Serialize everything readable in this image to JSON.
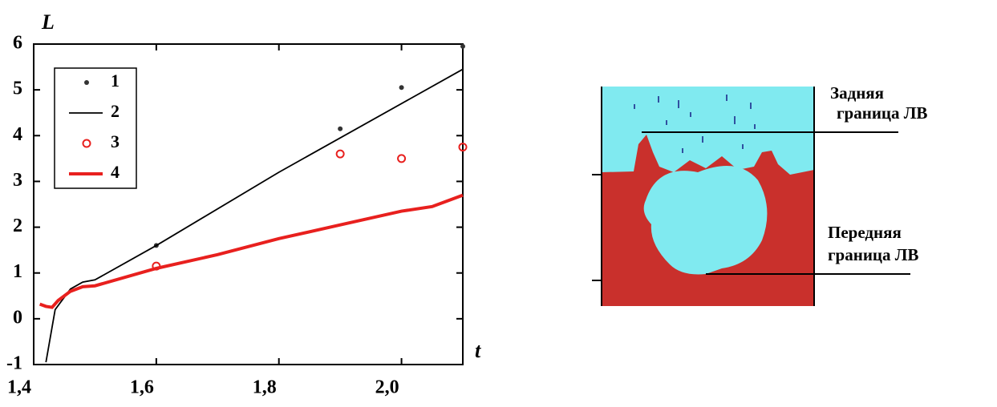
{
  "chart_data": {
    "type": "line",
    "y_label": "L",
    "x_label": "t",
    "xlim": [
      1.4,
      2.1
    ],
    "xticks": [
      {
        "value": 1.4,
        "label": "1,4"
      },
      {
        "value": 1.6,
        "label": "1,6"
      },
      {
        "value": 1.8,
        "label": "1,8"
      },
      {
        "value": 2.0,
        "label": "2,0"
      }
    ],
    "ylim": [
      -1,
      6
    ],
    "yticks": [
      -1,
      0,
      1,
      2,
      3,
      4,
      5,
      6
    ],
    "grid": false,
    "legend": "upper left",
    "series": [
      {
        "name": "1",
        "color": "#333333",
        "mode": "markers",
        "x": [
          1.6,
          1.9,
          2.0,
          2.1
        ],
        "values": [
          1.6,
          4.15,
          5.05,
          5.95
        ]
      },
      {
        "name": "2",
        "color": "#000000",
        "mode": "line",
        "x": [
          1.42,
          1.435,
          1.46,
          1.48,
          1.5,
          1.6,
          1.8,
          2.1
        ],
        "values": [
          -0.95,
          0.2,
          0.65,
          0.8,
          0.85,
          1.6,
          3.2,
          5.45
        ]
      },
      {
        "name": "3",
        "color": "#e8201e",
        "mode": "circles",
        "x": [
          1.6,
          1.9,
          2.0,
          2.1
        ],
        "values": [
          1.15,
          3.6,
          3.5,
          3.75
        ]
      },
      {
        "name": "4",
        "color": "#e8201e",
        "mode": "thick",
        "x": [
          1.41,
          1.42,
          1.43,
          1.44,
          1.46,
          1.48,
          1.5,
          1.6,
          1.7,
          1.8,
          1.9,
          2.0,
          2.05,
          2.1
        ],
        "values": [
          0.32,
          0.27,
          0.25,
          0.4,
          0.6,
          0.7,
          0.72,
          1.1,
          1.4,
          1.75,
          2.05,
          2.35,
          2.45,
          2.7
        ]
      }
    ]
  },
  "image_labels": [
    "Задняя",
    "граница ЛВ",
    "Передняя",
    "граница ЛВ"
  ]
}
